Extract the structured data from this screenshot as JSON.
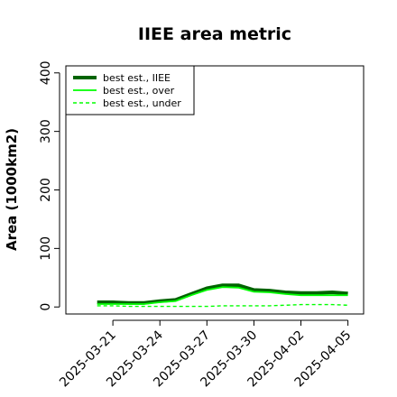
{
  "chart_data": {
    "type": "line",
    "title": "IIEE area metric",
    "xlabel": "",
    "ylabel": "Area (1000km2)",
    "ylim": [
      -12,
      412
    ],
    "yticks": [
      0,
      100,
      200,
      300,
      400
    ],
    "xlim": [
      "2025-03-18",
      "2025-04-06"
    ],
    "xticks": [
      "2025-03-21",
      "2025-03-24",
      "2025-03-27",
      "2025-03-30",
      "2025-04-02",
      "2025-04-05"
    ],
    "grid": false,
    "legend_position": "top-left",
    "x": [
      "2025-03-20",
      "2025-03-21",
      "2025-03-22",
      "2025-03-23",
      "2025-03-24",
      "2025-03-25",
      "2025-03-26",
      "2025-03-27",
      "2025-03-28",
      "2025-03-29",
      "2025-03-30",
      "2025-03-31",
      "2025-04-01",
      "2025-04-02",
      "2025-04-03",
      "2025-04-04",
      "2025-04-05"
    ],
    "series": [
      {
        "name": "best est., IIEE",
        "color": "#006400",
        "style": "solid-thick",
        "values": [
          8,
          8,
          7,
          7,
          10,
          12,
          22,
          32,
          37,
          37,
          29,
          28,
          25,
          24,
          24,
          25,
          23
        ]
      },
      {
        "name": "best est., over",
        "color": "#00ff00",
        "style": "solid",
        "values": [
          5,
          5,
          5,
          5,
          8,
          10,
          20,
          29,
          34,
          33,
          26,
          25,
          22,
          20,
          20,
          20,
          20
        ]
      },
      {
        "name": "best est., under",
        "color": "#00ff00",
        "style": "dashed",
        "values": [
          2,
          2,
          1,
          1,
          1,
          1,
          1,
          1,
          2,
          2,
          2,
          2,
          3,
          4,
          4,
          4,
          3
        ]
      }
    ]
  }
}
